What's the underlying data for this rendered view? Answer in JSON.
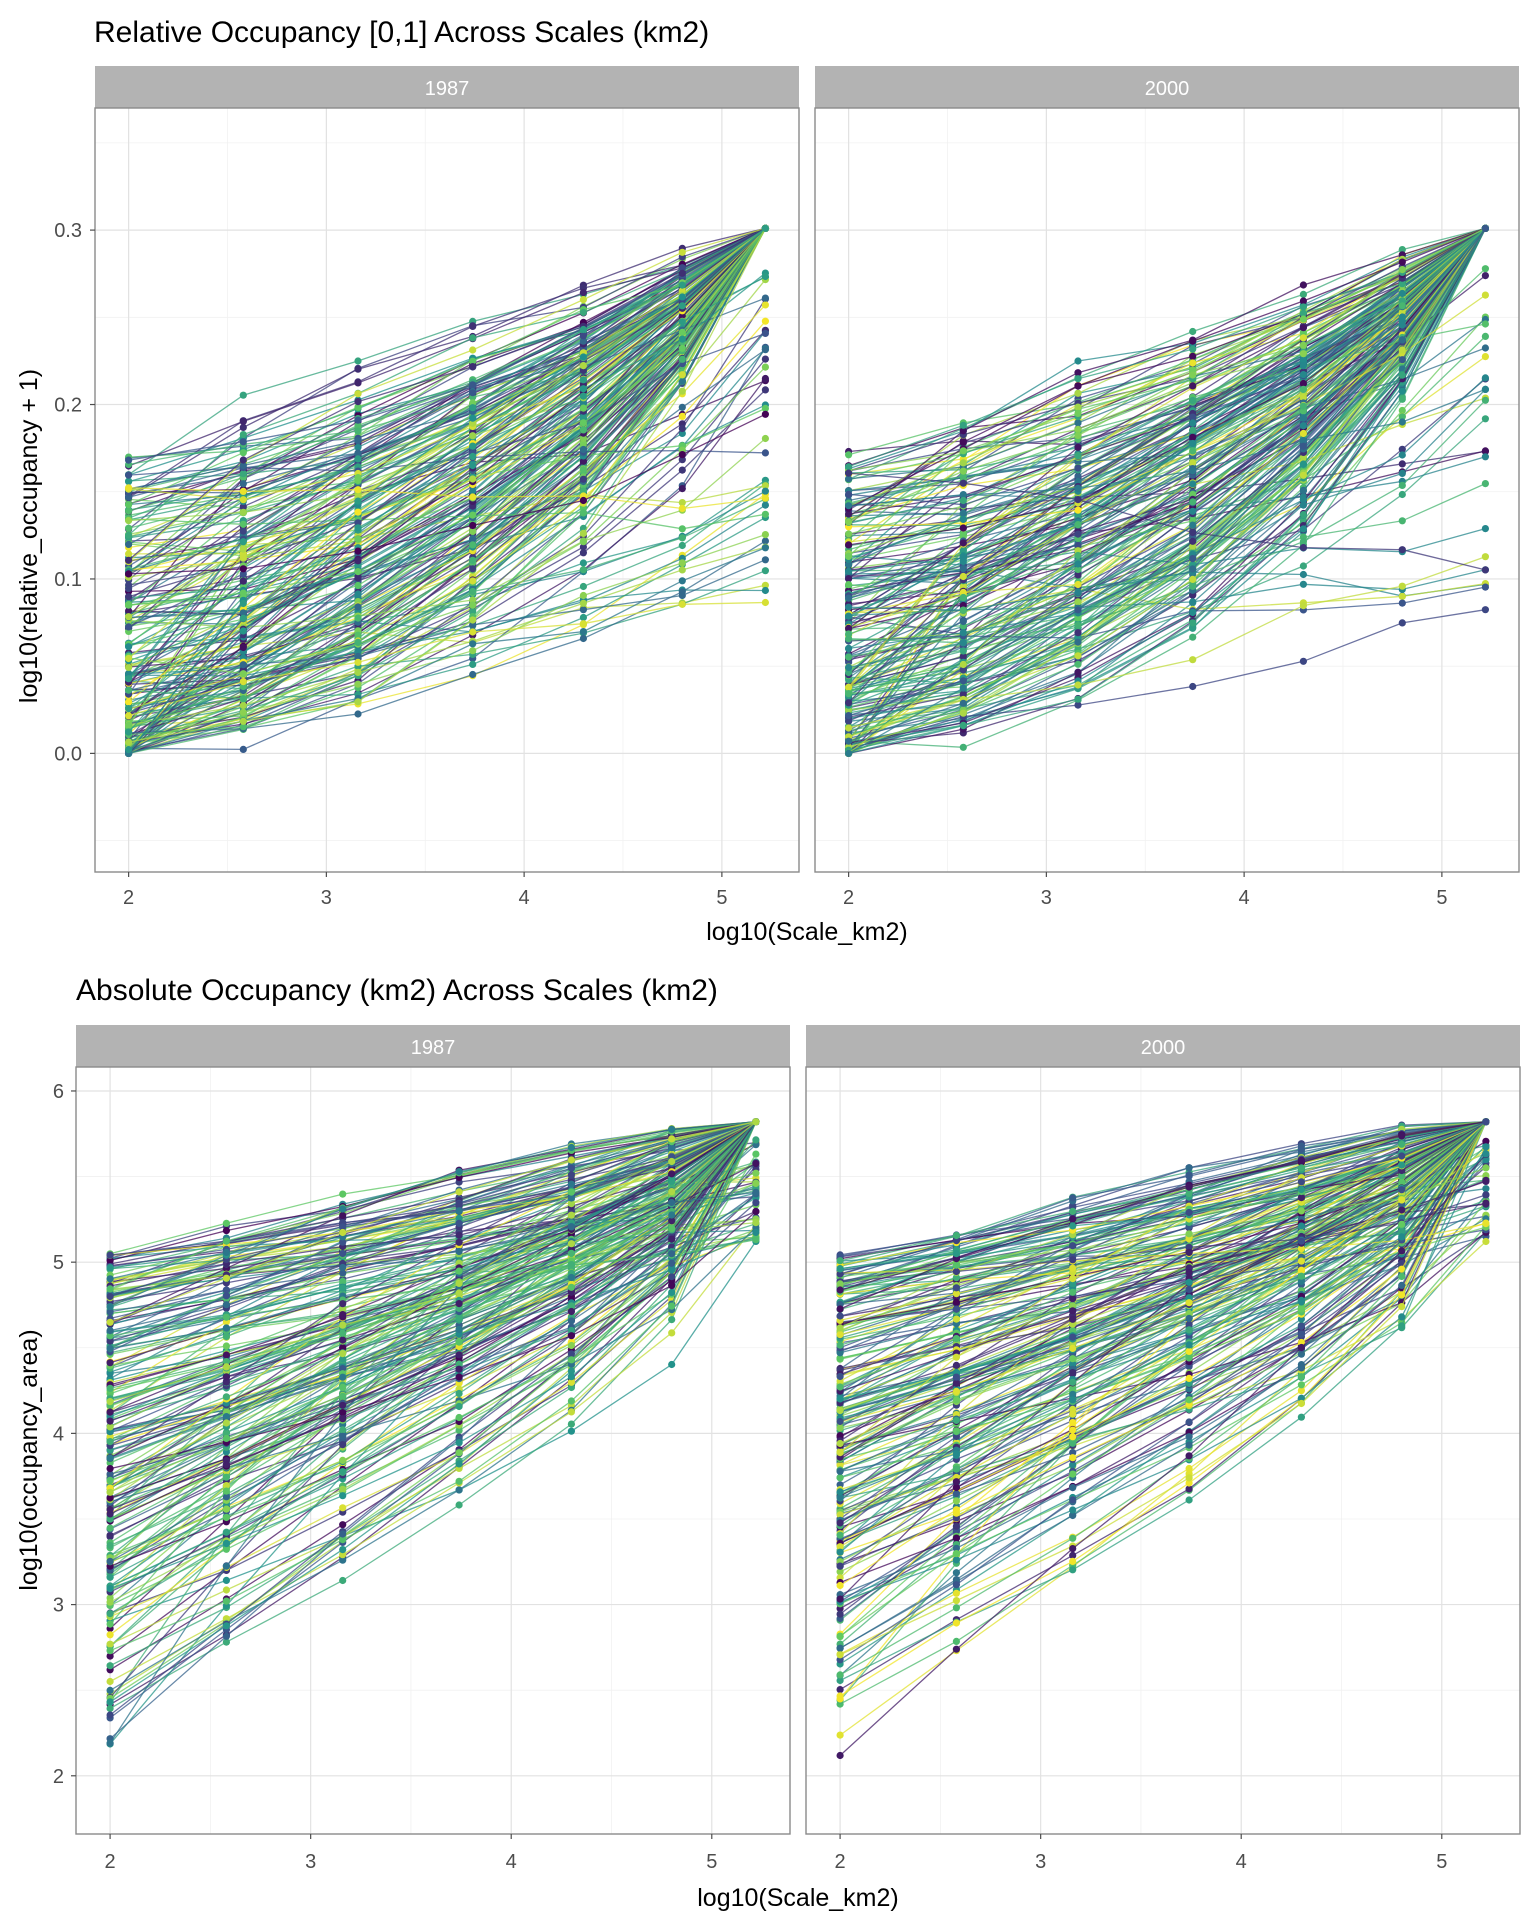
{
  "plots": [
    {
      "title": "Relative Occupancy [0,1] Across Scales (km2)",
      "xlabel": "log10(Scale_km2)",
      "ylabel": "log10(relative_occupancy + 1)",
      "panels": [
        "1987",
        "2000"
      ]
    },
    {
      "title": "Absolute Occupancy (km2) Across Scales (km2)",
      "xlabel": "log10(Scale_km2)",
      "ylabel": "log10(occupancy_area)",
      "panels": [
        "1987",
        "2000"
      ]
    }
  ],
  "chart_data": [
    {
      "type": "line",
      "title": "Relative Occupancy [0,1] Across Scales (km2)",
      "xlabel": "log10(Scale_km2)",
      "ylabel": "log10(relative_occupancy + 1)",
      "facets": [
        "1987",
        "2000"
      ],
      "x": [
        2,
        2.58,
        3.16,
        3.74,
        4.3,
        4.8,
        5.22
      ],
      "xlim": [
        1.83,
        5.39
      ],
      "ylim": [
        -0.068,
        0.37
      ],
      "xticks": [
        "2",
        "3",
        "4",
        "5"
      ],
      "yticks": [
        "0.0",
        "0.1",
        "0.2",
        "0.3"
      ],
      "grid": true,
      "legend": "none",
      "palette": [
        "#440154",
        "#3b528b",
        "#21908c",
        "#5dc863",
        "#fde725"
      ],
      "note_series": "hundreds of individual series lines with points, viridis colours"
    },
    {
      "type": "line",
      "title": "Absolute Occupancy (km2) Across Scales (km2)",
      "xlabel": "log10(Scale_km2)",
      "ylabel": "log10(occupancy_area)",
      "facets": [
        "1987",
        "2000"
      ],
      "x": [
        2,
        2.58,
        3.16,
        3.74,
        4.3,
        4.8,
        5.22
      ],
      "xlim": [
        1.83,
        5.39
      ],
      "ylim": [
        1.66,
        6.14
      ],
      "xticks": [
        "2",
        "3",
        "4",
        "5"
      ],
      "yticks": [
        "2",
        "3",
        "4",
        "5",
        "6"
      ],
      "grid": true,
      "legend": "none",
      "palette": [
        "#440154",
        "#3b528b",
        "#21908c",
        "#5dc863",
        "#fde725"
      ],
      "note_series": "hundreds of individual series lines with points, viridis colours"
    }
  ]
}
